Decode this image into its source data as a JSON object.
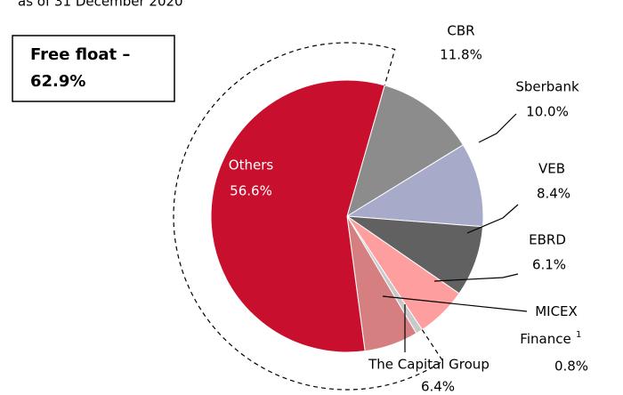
{
  "chart_data": {
    "type": "pie",
    "subtitle": "as of 31 December 2020",
    "categories": [
      "CBR",
      "Sberbank",
      "VEB",
      "EBRD",
      "MICEX Finance",
      "The Capital Group",
      "Others"
    ],
    "footnote_markers": [
      null,
      null,
      null,
      null,
      "1",
      null,
      null
    ],
    "values": [
      11.8,
      10.0,
      8.4,
      6.1,
      0.8,
      6.4,
      56.6
    ],
    "value_labels": [
      "11.8%",
      "10.0%",
      "8.4%",
      "6.1%",
      "0.8%",
      "6.4%",
      "56.6%"
    ],
    "colors": [
      "#8c8c8c",
      "#a7aac9",
      "#616161",
      "#ff9e9e",
      "#c9c9c9",
      "#d57f80",
      "#c8102e"
    ],
    "annotation": {
      "lines": [
        "Free float –",
        "62.9%"
      ]
    }
  }
}
